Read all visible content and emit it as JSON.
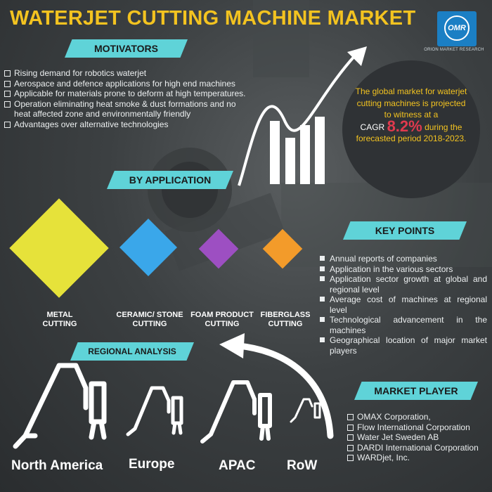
{
  "title": "WATERJET CUTTING MACHINE MARKET",
  "logo": {
    "mark": "OMR",
    "caption": "ORION MARKET RESEARCH"
  },
  "motivators": {
    "heading": "MOTIVATORS",
    "items": [
      "Rising demand for robotics waterjet",
      "Aerospace and defence applications for high end machines",
      "Applicable for materials prone to deform at high temperatures.",
      "Operation eliminating heat smoke & dust formations and no heat affected zone and environmentally friendly",
      "Advantages over alternative technologies"
    ]
  },
  "forecast": {
    "text_before": "The global market for waterjet cutting machines is projected to witness at a",
    "cagr_prefix": "CAGR",
    "cagr_value": "8.2%",
    "text_after": "during the forecasted period 2018-2023."
  },
  "by_application": {
    "heading": "BY APPLICATION",
    "items": [
      {
        "label": "METAL\nCUTTING",
        "color": "#e6e23a"
      },
      {
        "label": "CERAMIC/ STONE\nCUTTING",
        "color": "#3aa7ea"
      },
      {
        "label": "FOAM PRODUCT\nCUTTING",
        "color": "#9d4fc2"
      },
      {
        "label": "FIBERGLASS\nCUTTING",
        "color": "#f39b2a"
      }
    ]
  },
  "key_points": {
    "heading": "KEY POINTS",
    "items": [
      "Annual reports of companies",
      "Application in the various sectors",
      "Application sector growth at global and regional level",
      "Average cost of machines at regional level",
      "Technological advancement in the machines",
      "Geographical location of major market players"
    ]
  },
  "regional_analysis": {
    "heading": "REGIONAL ANALYSIS",
    "regions": [
      "North America",
      "Europe",
      "APAC",
      "RoW"
    ]
  },
  "market_player": {
    "heading": "MARKET PLAYER",
    "items": [
      "OMAX Corporation,",
      "Flow International Corporation",
      "Water Jet Sweden AB",
      "DARDI International Corporation",
      "WARDjet, Inc."
    ]
  },
  "colors": {
    "accent_yellow": "#f3c320",
    "banner_cyan": "#5fd3d8",
    "cagr_red": "#e03a4e",
    "logo_blue": "#1b7fc4"
  }
}
